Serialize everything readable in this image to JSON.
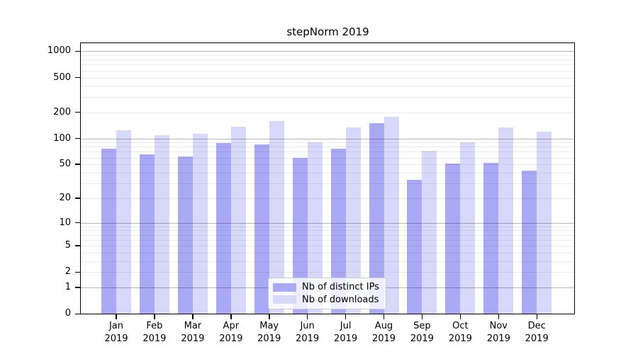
{
  "title": "stepNorm 2019",
  "chart_data": {
    "type": "bar",
    "title": "stepNorm 2019",
    "categories": [
      "Jan 2019",
      "Feb 2019",
      "Mar 2019",
      "Apr 2019",
      "May 2019",
      "Jun 2019",
      "Jul 2019",
      "Aug 2019",
      "Sep 2019",
      "Oct 2019",
      "Nov 2019",
      "Dec 2019"
    ],
    "series": [
      {
        "name": "Nb of distinct IPs",
        "color": "#a9a9f6",
        "values": [
          76,
          65,
          62,
          89,
          85,
          60,
          76,
          150,
          33,
          51,
          52,
          42
        ]
      },
      {
        "name": "Nb of downloads",
        "color": "#d8d8fa",
        "values": [
          124,
          109,
          112,
          136,
          159,
          91,
          135,
          177,
          72,
          91,
          134,
          119
        ]
      }
    ],
    "xlabel": "",
    "ylabel": "",
    "yscale": "log1p",
    "ylim": [
      0,
      1000
    ],
    "y_tick_labels": [
      0,
      1,
      2,
      5,
      10,
      20,
      50,
      100,
      200,
      500,
      1000
    ],
    "grid_major_values": [
      1,
      10,
      100,
      1000
    ],
    "grid_minor_values": [
      2,
      3,
      4,
      5,
      6,
      7,
      8,
      9,
      20,
      30,
      40,
      50,
      60,
      70,
      80,
      90,
      200,
      300,
      400,
      500,
      600,
      700,
      800,
      900
    ],
    "grid": "horizontal",
    "legend_position": "lower center"
  },
  "colors": {
    "bar_dark": "#a9a9f6",
    "bar_light": "#d8d8fa",
    "grid_major": "#b8b8b8",
    "grid_minor": "#ebebeb",
    "spine": "#000000",
    "legend_border": "#cccccc",
    "background": "#ffffff"
  }
}
